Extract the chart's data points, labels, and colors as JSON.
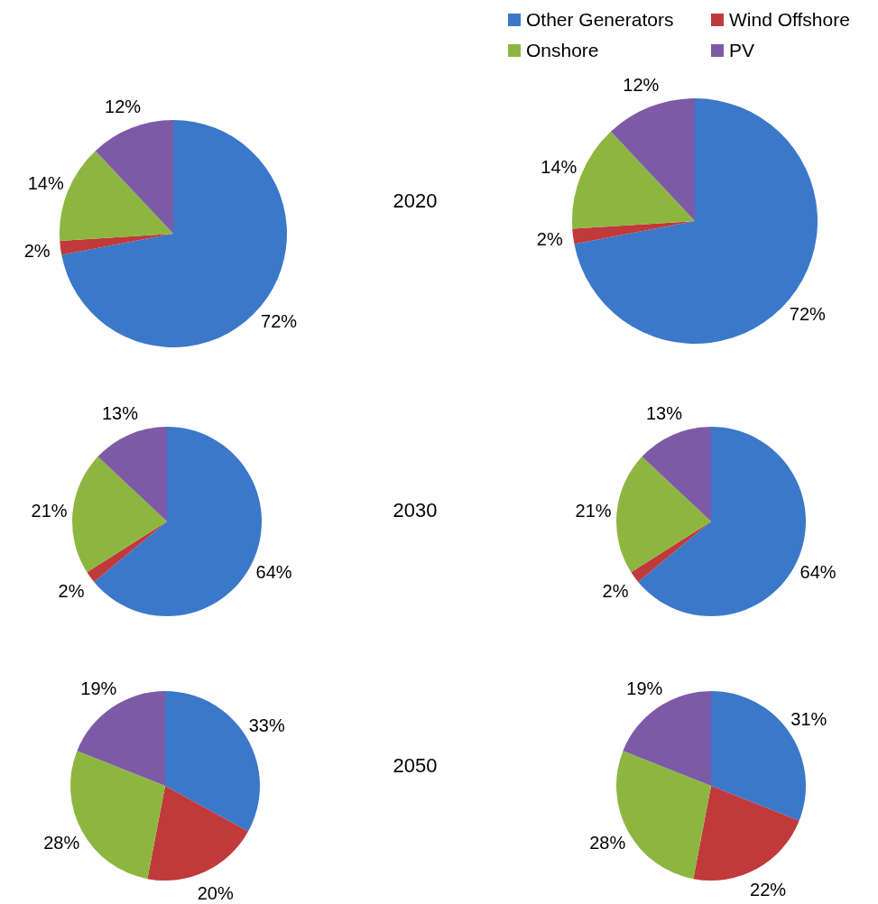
{
  "chart_data": [
    {
      "type": "pie",
      "categories": [
        null,
        null,
        null,
        null
      ],
      "values": [
        72,
        2,
        14,
        12
      ],
      "value_labels": [
        "72%",
        "2%",
        "14%",
        "12%"
      ],
      "colors": [
        "#3b78c9",
        "#c0393b",
        "#8db640",
        "#7d5aa6"
      ],
      "annotations": [
        "2020"
      ]
    },
    {
      "type": "pie",
      "categories": [
        "Other Generators",
        "Wind Offshore",
        "Onshore",
        "PV"
      ],
      "values": [
        72,
        2,
        14,
        12
      ],
      "value_labels": [
        "72%",
        "2%",
        "14%",
        "12%"
      ],
      "colors": [
        "#3b78c9",
        "#c0393b",
        "#8db640",
        "#7d5aa6"
      ],
      "legend": "top"
    },
    {
      "type": "pie",
      "categories": [
        null,
        null,
        null,
        null
      ],
      "values": [
        64,
        2,
        21,
        13
      ],
      "value_labels": [
        "64%",
        "2%",
        "21%",
        "13%"
      ],
      "colors": [
        "#3b78c9",
        "#c0393b",
        "#8db640",
        "#7d5aa6"
      ],
      "annotations": [
        "2030"
      ]
    },
    {
      "type": "pie",
      "categories": [
        null,
        null,
        null,
        null
      ],
      "values": [
        64,
        2,
        21,
        13
      ],
      "value_labels": [
        "64%",
        "2%",
        "21%",
        "13%"
      ],
      "colors": [
        "#3b78c9",
        "#c0393b",
        "#8db640",
        "#7d5aa6"
      ]
    },
    {
      "type": "pie",
      "categories": [
        null,
        null,
        null,
        null
      ],
      "values": [
        33,
        20,
        28,
        19
      ],
      "value_labels": [
        "33%",
        "20%",
        "28%",
        "19%"
      ],
      "colors": [
        "#3b78c9",
        "#c0393b",
        "#8db640",
        "#7d5aa6"
      ],
      "annotations": [
        "2050"
      ]
    },
    {
      "type": "pie",
      "categories": [
        null,
        null,
        null,
        null
      ],
      "values": [
        31,
        22,
        28,
        19
      ],
      "value_labels": [
        "31%",
        "22%",
        "28%",
        "19%"
      ],
      "colors": [
        "#3b78c9",
        "#c0393b",
        "#8db640",
        "#7d5aa6"
      ]
    }
  ]
}
